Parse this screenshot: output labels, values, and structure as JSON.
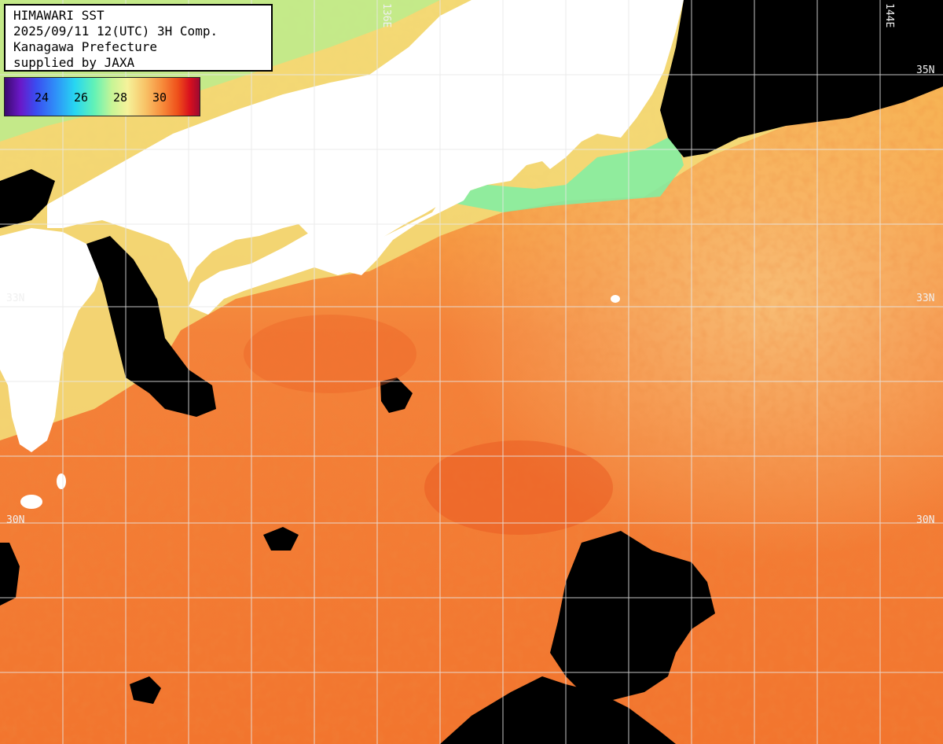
{
  "info": {
    "title": "HIMAWARI SST",
    "datetime": "2025/09/11 12(UTC) 3H Comp.",
    "prefecture": "Kanagawa Prefecture",
    "supplier": "supplied by JAXA"
  },
  "colorbar": {
    "ticks": [
      "24",
      "26",
      "28",
      "30"
    ],
    "colors": [
      "#3a0b6e",
      "#3a4cf0",
      "#27d6f2",
      "#c7f596",
      "#f6f29a",
      "#f78a3a",
      "#d8101e",
      "#9e0a30"
    ]
  },
  "gridlabels": {
    "lat_33_left": "33N",
    "lat_33_right": "33N",
    "lat_30_left": "30N",
    "lat_30_right": "30N",
    "lat_35_right": "35N",
    "lon_136": "136E",
    "lon_144": "144E"
  },
  "palette": {
    "land": "#ffffff",
    "cloud": "#000000",
    "sea_warm": "#f57a2e",
    "sea_mild": "#f8a34a",
    "sea_cool": "#f4e58a",
    "sea_cold": "#78f0a8"
  }
}
